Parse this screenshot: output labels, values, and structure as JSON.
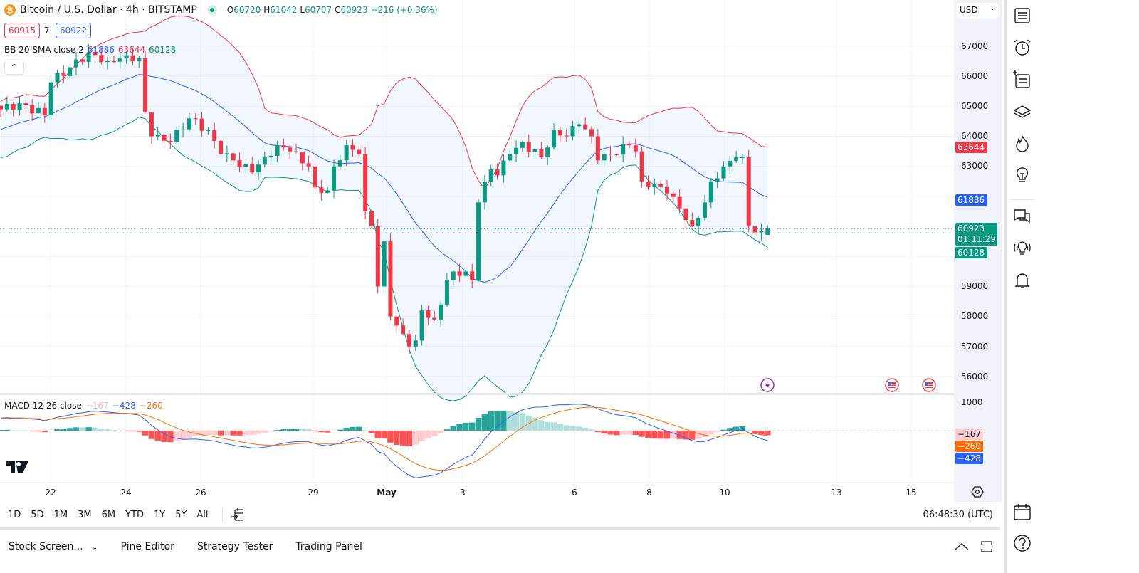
{
  "header": {
    "symbol": "Bitcoin / U.S. Dollar · 4h · BITSTAMP",
    "coin_glyph": "₿",
    "o_label": "O",
    "open": "60720",
    "h_label": "H",
    "high": "61042",
    "l_label": "L",
    "low": "60707",
    "c_label": "C",
    "close": "60923",
    "change": "+216 (+0.36%)"
  },
  "trade": {
    "sell": "60915",
    "spread": "7",
    "buy": "60922"
  },
  "bb": {
    "label": "BB 20 SMA close 2",
    "basis": "61886",
    "upper": "63644",
    "lower": "60128"
  },
  "macd": {
    "label": "MACD 12 26 close",
    "hist": "−167",
    "macd": "−428",
    "signal": "−260"
  },
  "price_axis": {
    "currency": "USD",
    "ticks": [
      "67000",
      "66000",
      "65000",
      "64000",
      "63000",
      "59000",
      "58000",
      "57000",
      "56000"
    ],
    "labels": {
      "upper": "63644",
      "basis": "61886",
      "last": "60923",
      "countdown": "01:11:29",
      "lower": "60128"
    },
    "macd_tick": "1000",
    "macd_labels": {
      "hist": "−167",
      "signal": "−260",
      "macd": "−428"
    }
  },
  "time_axis": [
    "22",
    "24",
    "26",
    "29",
    "May",
    "3",
    "6",
    "8",
    "10",
    "13",
    "15"
  ],
  "toolbar": {
    "ranges": [
      "1D",
      "5D",
      "1M",
      "3M",
      "6M",
      "YTD",
      "1Y",
      "5Y",
      "All"
    ],
    "clock": "06:48:30 (UTC)"
  },
  "bottom_panel": {
    "tabs": [
      "Stock Screen...",
      "Pine Editor",
      "Strategy Tester",
      "Trading Panel"
    ]
  },
  "colors": {
    "up": "#089981",
    "down": "#f23645",
    "basis": "#2962ff",
    "upper": "#f23645",
    "lower": "#089981",
    "signal": "#ff6d00"
  },
  "sidebar_icons": [
    "watchlist-icon",
    "alarm-icon",
    "add-list-icon",
    "layers-icon",
    "hotlist-icon",
    "idea-icon",
    "chat-icon",
    "streams-icon",
    "notifications-icon",
    "calendar-icon",
    "help-icon"
  ],
  "chart_data": {
    "type": "candlestick",
    "interval": "4h",
    "ylim": [
      55600,
      67700
    ],
    "last_candle": {
      "open": 60720,
      "high": 61042,
      "low": 60707,
      "close": 60923
    },
    "close_anchors": [
      [
        0,
        64900
      ],
      [
        3,
        65100
      ],
      [
        7,
        64700
      ],
      [
        8,
        65800
      ],
      [
        11,
        66300
      ],
      [
        14,
        66800
      ],
      [
        17,
        66500
      ],
      [
        20,
        66700
      ],
      [
        22,
        66600
      ],
      [
        23,
        64800
      ],
      [
        24,
        64000
      ],
      [
        27,
        63800
      ],
      [
        30,
        64600
      ],
      [
        33,
        64200
      ],
      [
        35,
        63400
      ],
      [
        37,
        63200
      ],
      [
        40,
        62800
      ],
      [
        42,
        63300
      ],
      [
        44,
        63700
      ],
      [
        46,
        63500
      ],
      [
        49,
        63000
      ],
      [
        50,
        62300
      ],
      [
        52,
        62200
      ],
      [
        53,
        63000
      ],
      [
        55,
        63700
      ],
      [
        57,
        63400
      ],
      [
        58,
        61500
      ],
      [
        59,
        61000
      ],
      [
        60,
        59000
      ],
      [
        61,
        60500
      ],
      [
        62,
        58000
      ],
      [
        63,
        57700
      ],
      [
        65,
        57000
      ],
      [
        66,
        57200
      ],
      [
        67,
        58200
      ],
      [
        69,
        57900
      ],
      [
        70,
        58400
      ],
      [
        71,
        59200
      ],
      [
        72,
        59500
      ],
      [
        74,
        59500
      ],
      [
        75,
        59200
      ],
      [
        76,
        61800
      ],
      [
        78,
        62900
      ],
      [
        79,
        62700
      ],
      [
        81,
        63400
      ],
      [
        83,
        63800
      ],
      [
        86,
        63300
      ],
      [
        88,
        64200
      ],
      [
        90,
        64000
      ],
      [
        92,
        64400
      ],
      [
        94,
        64000
      ],
      [
        95,
        63200
      ],
      [
        97,
        63400
      ],
      [
        100,
        63700
      ],
      [
        101,
        63500
      ],
      [
        102,
        62500
      ],
      [
        104,
        62400
      ],
      [
        106,
        62100
      ],
      [
        108,
        61600
      ],
      [
        110,
        61000
      ],
      [
        112,
        61800
      ],
      [
        113,
        62500
      ],
      [
        115,
        63000
      ],
      [
        117,
        63300
      ],
      [
        118,
        63300
      ],
      [
        119,
        61000
      ],
      [
        120,
        60800
      ],
      [
        121,
        60850
      ],
      [
        122,
        60923
      ]
    ]
  }
}
